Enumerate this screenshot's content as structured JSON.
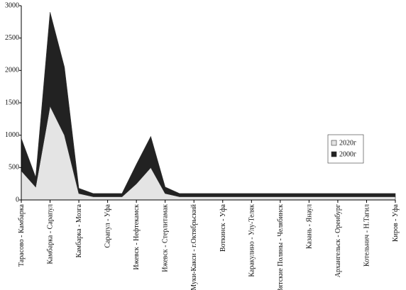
{
  "chart_data": {
    "type": "stacked_area",
    "categories": [
      "Тарасово - Камбарка",
      null,
      "Камбарка - Сарапул",
      null,
      "Камбарка - Мозга",
      null,
      "Сарапул - Уфа",
      null,
      "Ижевск - Нефтекамск",
      null,
      "Ижевск - Стерлитамак",
      null,
      "Муки-Какси - г.Октябрьский",
      null,
      "Воткинск - Уфа",
      null,
      "Каракулино - Улу-Теляк",
      null,
      "Вятские Поляны - Челябинск",
      null,
      "Казань - Янаул",
      null,
      "Архангельск - Оренбург",
      null,
      "Котельнич - Н.Тагил",
      null,
      "Киров - Уфа"
    ],
    "series": [
      {
        "name": "2020г",
        "color": "#e4e4e4",
        "values": [
          450,
          200,
          1450,
          1000,
          100,
          50,
          50,
          50,
          250,
          500,
          100,
          50,
          50,
          50,
          50,
          50,
          50,
          50,
          50,
          50,
          50,
          50,
          50,
          50,
          50,
          50,
          50
        ]
      },
      {
        "name": "2000г",
        "color": "#222222",
        "values": [
          500,
          150,
          1450,
          1050,
          80,
          50,
          50,
          50,
          300,
          480,
          100,
          50,
          50,
          50,
          50,
          50,
          50,
          50,
          50,
          50,
          50,
          50,
          50,
          50,
          50,
          50,
          50
        ]
      }
    ],
    "ylim": [
      0,
      3000
    ],
    "yticks": [
      0,
      500,
      1000,
      1500,
      2000,
      2500,
      3000
    ],
    "grid": false,
    "legend": "right"
  }
}
